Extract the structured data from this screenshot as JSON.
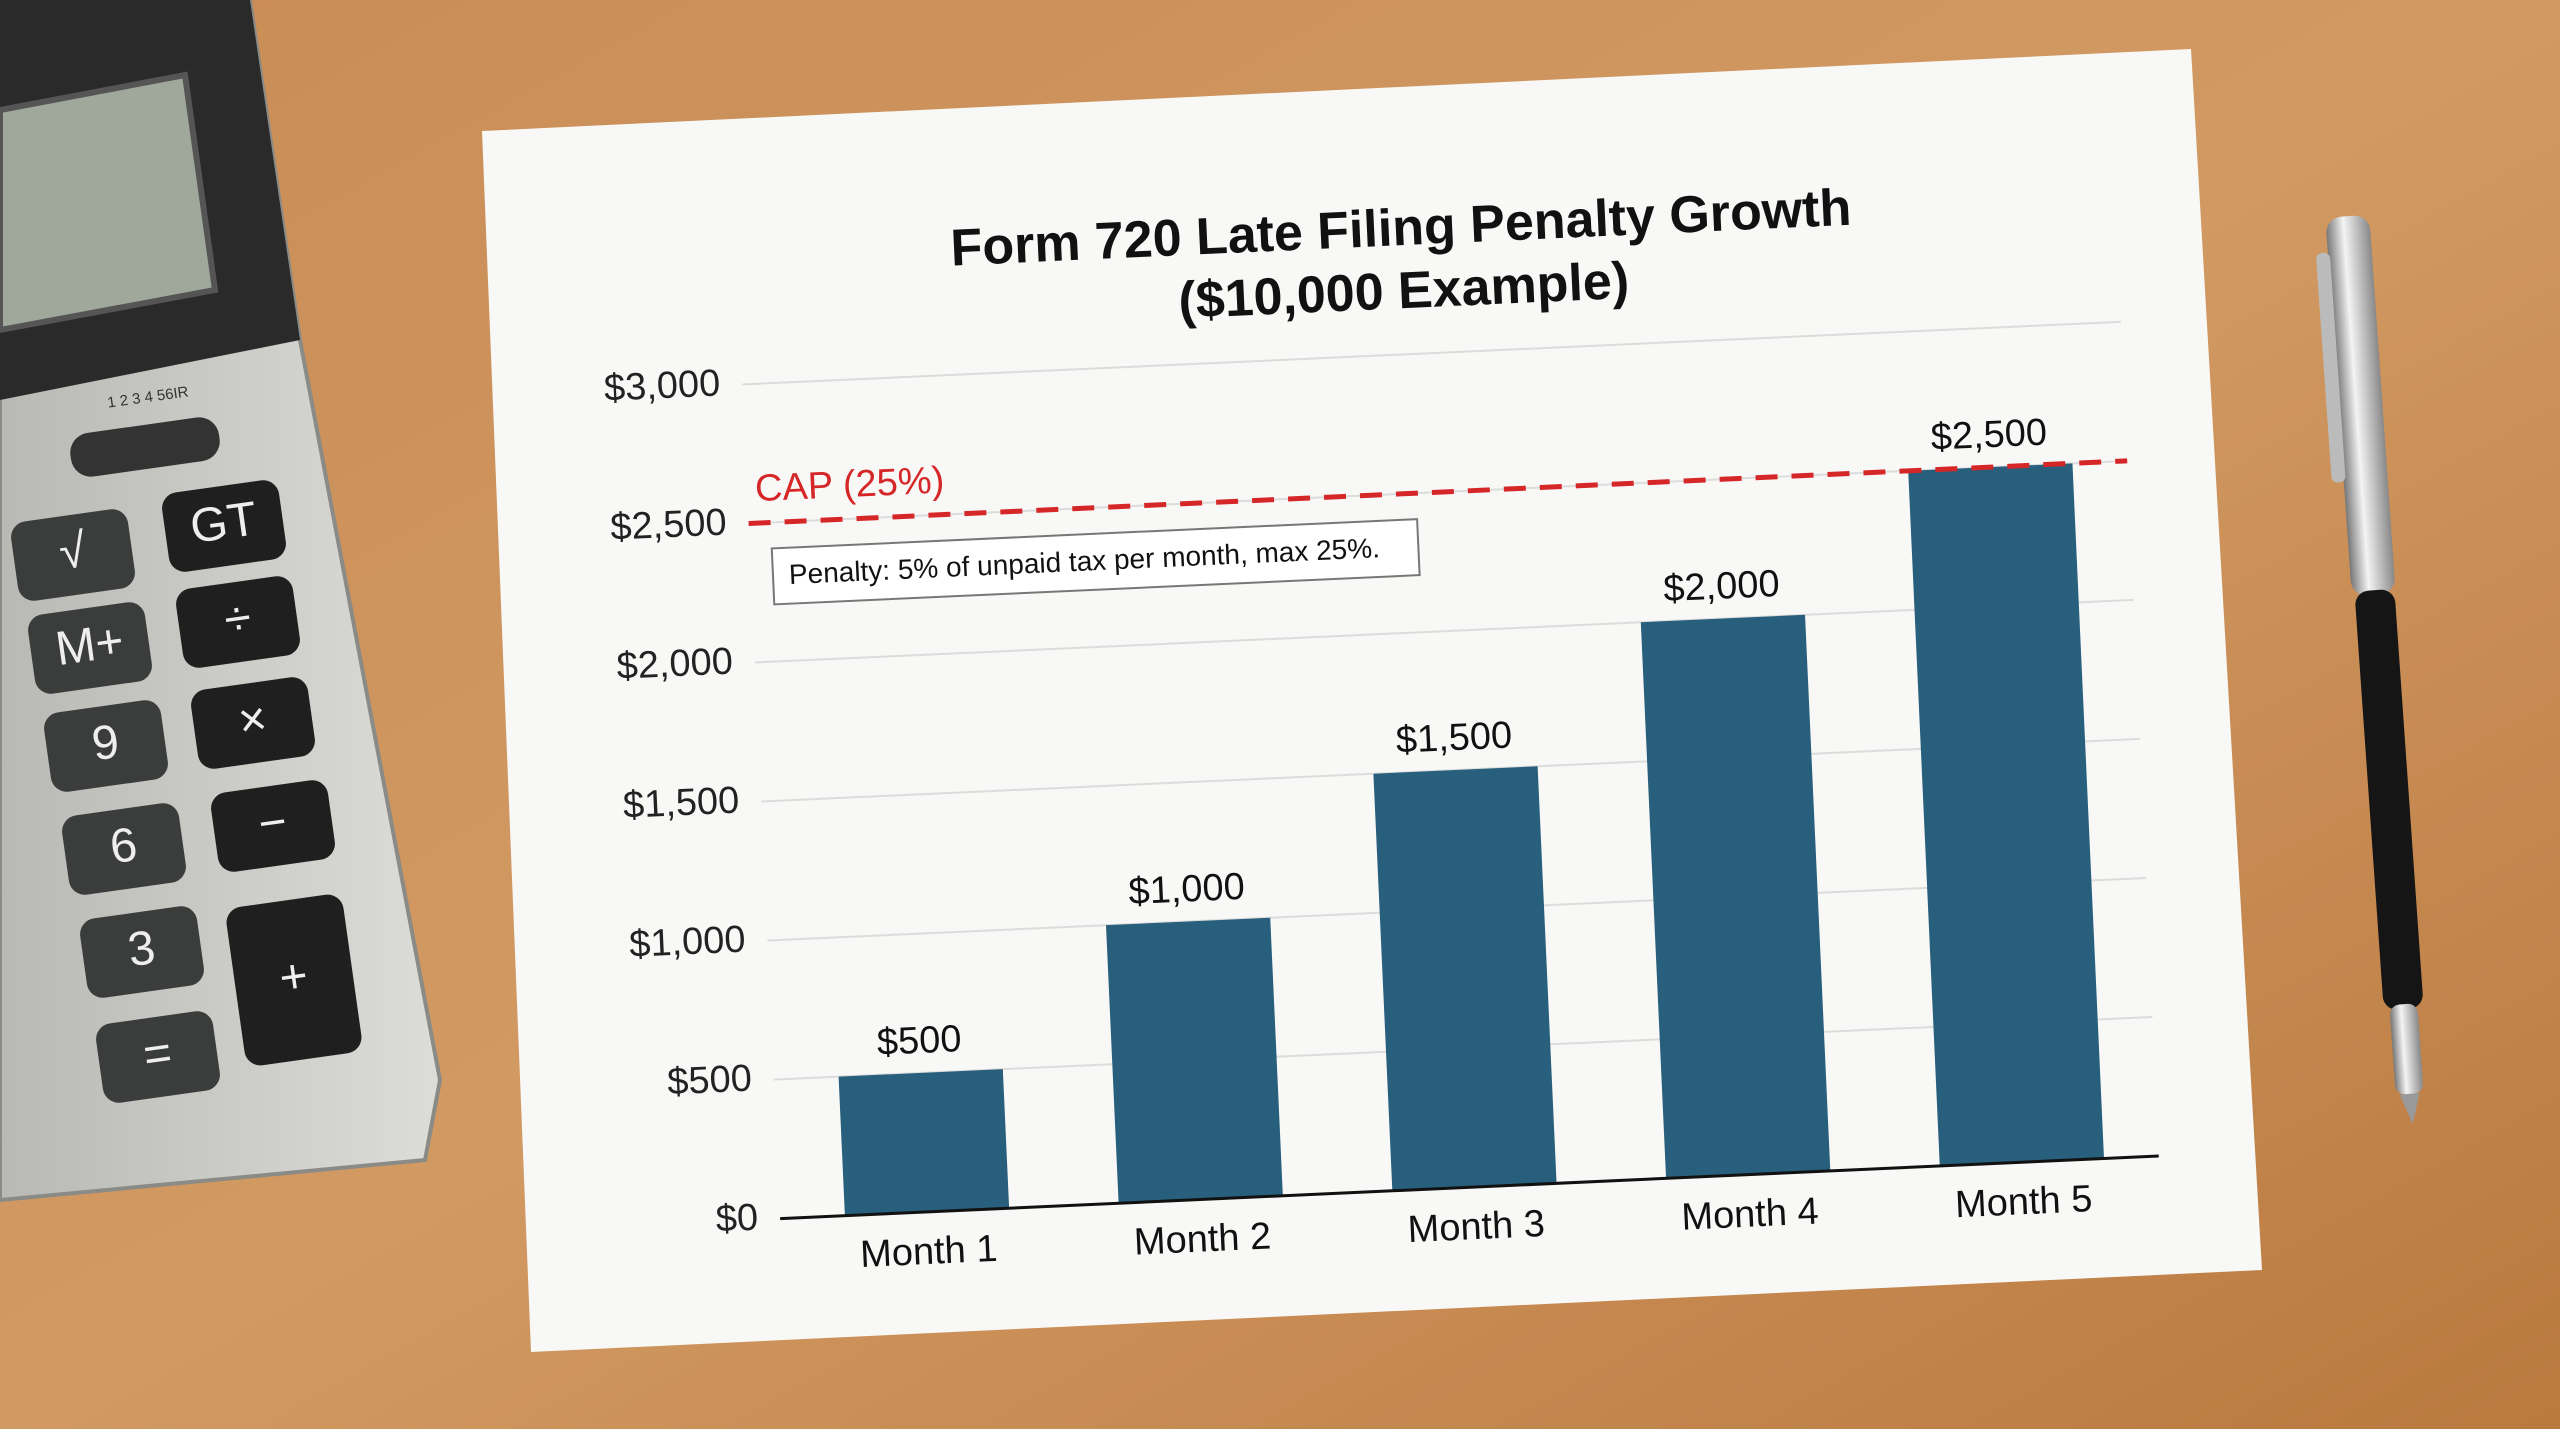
{
  "chart_data": {
    "type": "bar",
    "title": "Form 720 Late Filing Penalty Growth",
    "subtitle": "($10,000 Example)",
    "categories": [
      "Month 1",
      "Month 2",
      "Month 3",
      "Month 4",
      "Month 5"
    ],
    "values": [
      500,
      1000,
      1500,
      2000,
      2500
    ],
    "value_labels": [
      "$500",
      "$1,000",
      "$1,500",
      "$2,000",
      "$2,500"
    ],
    "color": "#285f7d",
    "ylim": [
      0,
      3000
    ],
    "yticks": [
      {
        "value": 0,
        "label": "$0"
      },
      {
        "value": 500,
        "label": "$500"
      },
      {
        "value": 1000,
        "label": "$1,000"
      },
      {
        "value": 1500,
        "label": "$1,500"
      },
      {
        "value": 2000,
        "label": "$2,000"
      },
      {
        "value": 2500,
        "label": "$2,500"
      },
      {
        "value": 3000,
        "label": "$3,000"
      }
    ],
    "grid": true,
    "reference_line": {
      "value": 2500,
      "label": "CAP (25%)",
      "color": "#d62728"
    },
    "annotation": "Penalty: 5% of unpaid tax per month, max 25%."
  },
  "calculator": {
    "switch_label": "1 2 3 4 56IR",
    "keys": [
      "√",
      "GT",
      "M+",
      "÷",
      "9",
      "×",
      "6",
      "−",
      "3",
      "+",
      "="
    ]
  }
}
